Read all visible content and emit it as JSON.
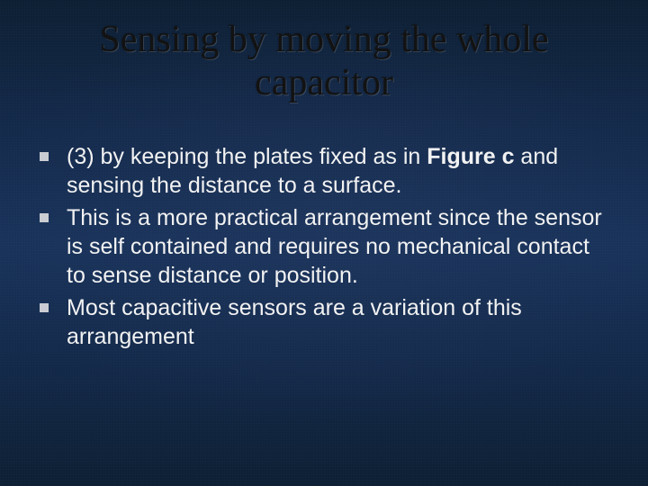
{
  "slide": {
    "background_colors": {
      "base": "#13294a",
      "vignette_dark": "#0d1f33",
      "center_glow": "#1a365f"
    },
    "title": {
      "line1": "Sensing by moving the whole",
      "line2": "capacitor",
      "color": "#111111",
      "font_family": "Times New Roman",
      "font_size_pt": 32
    },
    "body": {
      "text_color": "#f2f2f2",
      "bullet_color": "#c9ccd2",
      "font_size_pt": 19,
      "bullets": [
        {
          "pre": "(3) by keeping the plates fixed as in ",
          "bold": "Figure c",
          "post": " and sensing the distance to a surface."
        },
        {
          "pre": "This is a more practical arrangement since the sensor is self contained and requires no mechanical contact to sense distance or position.",
          "bold": "",
          "post": ""
        },
        {
          "pre": "Most capacitive sensors are a variation of this arrangement",
          "bold": "",
          "post": ""
        }
      ]
    }
  }
}
